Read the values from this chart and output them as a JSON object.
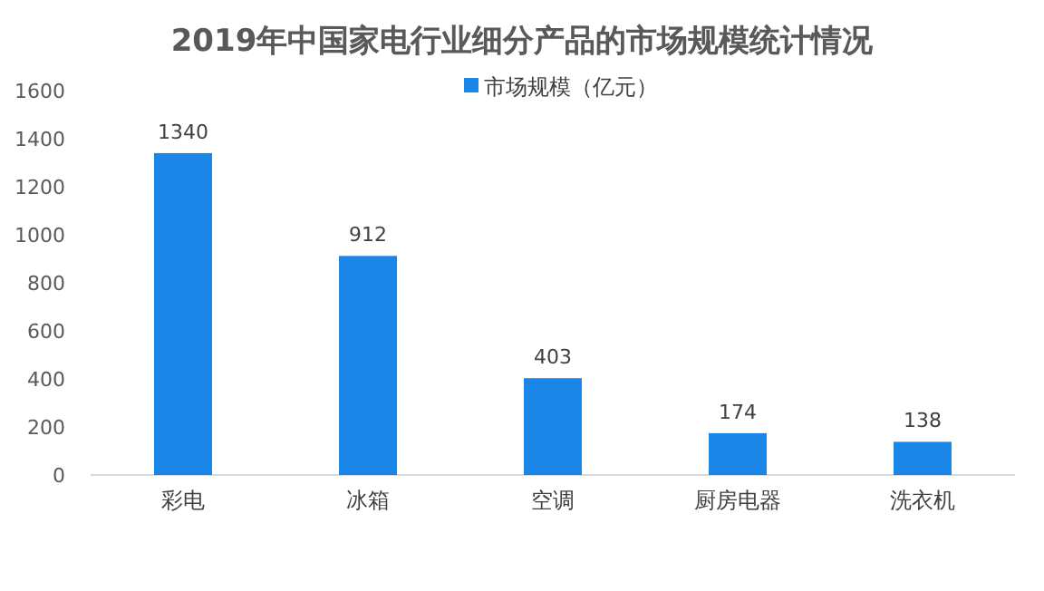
{
  "chart_data": {
    "type": "bar",
    "title": "2019年中国家电行业细分产品的市场规模统计情况",
    "categories": [
      "彩电",
      "冰箱",
      "空调",
      "厨房电器",
      "洗衣机"
    ],
    "series": [
      {
        "name": "市场规模（亿元）",
        "color": "#1a86e8",
        "values": [
          1340,
          912,
          403,
          174,
          138
        ]
      }
    ],
    "ylim": [
      0,
      1600
    ],
    "yticks": [
      0,
      200,
      400,
      600,
      800,
      1000,
      1200,
      1400,
      1600
    ],
    "data_labels": true,
    "legend": "top",
    "grid": false
  }
}
